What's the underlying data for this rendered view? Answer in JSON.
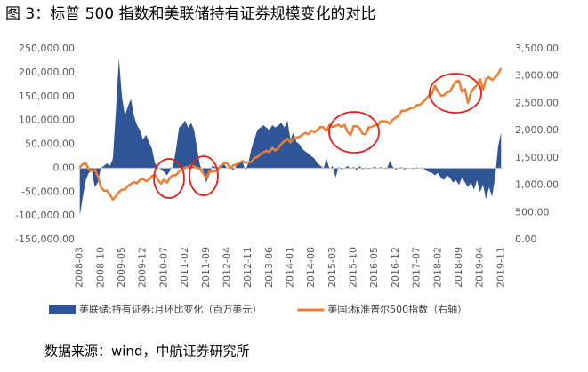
{
  "chart_data": {
    "type": "area-line",
    "title": "图 3：标普 500 指数和美联储持有证券规模变化的对比",
    "source": "数据来源：wind，中航证券研究所",
    "categories": [
      "2008-03",
      null,
      null,
      null,
      null,
      null,
      null,
      "2008-10",
      null,
      null,
      null,
      null,
      null,
      null,
      "2009-05",
      null,
      null,
      null,
      null,
      null,
      null,
      "2009-12",
      null,
      null,
      null,
      null,
      null,
      null,
      "2010-07",
      null,
      null,
      null,
      null,
      null,
      null,
      "2011-02",
      null,
      null,
      null,
      null,
      null,
      null,
      "2011-09",
      null,
      null,
      null,
      null,
      null,
      null,
      "2012-04",
      null,
      null,
      null,
      null,
      null,
      null,
      "2012-11",
      null,
      null,
      null,
      null,
      null,
      null,
      "2013-06",
      null,
      null,
      null,
      null,
      null,
      null,
      "2014-01",
      null,
      null,
      null,
      null,
      null,
      null,
      "2014-08",
      null,
      null,
      null,
      null,
      null,
      null,
      "2015-03",
      null,
      null,
      null,
      null,
      null,
      null,
      "2015-10",
      null,
      null,
      null,
      null,
      null,
      null,
      "2016-05",
      null,
      null,
      null,
      null,
      null,
      null,
      "2016-12",
      null,
      null,
      null,
      null,
      null,
      null,
      "2017-07",
      null,
      null,
      null,
      null,
      null,
      null,
      "2018-02",
      null,
      null,
      null,
      null,
      null,
      null,
      "2018-09",
      null,
      null,
      null,
      null,
      null,
      null,
      "2019-04",
      null,
      null,
      null,
      null,
      null,
      null,
      "2019-11"
    ],
    "series": [
      {
        "name": "美联储:持有证券:月环比变化（百万美元）",
        "color": "#2f5597",
        "kind": "area",
        "values": [
          -100000,
          -60000,
          -25000,
          -10000,
          -5000,
          -40000,
          -30000,
          0,
          5000,
          10000,
          5000,
          20000,
          120000,
          230000,
          150000,
          110000,
          130000,
          145000,
          110000,
          90000,
          80000,
          60000,
          70000,
          55000,
          40000,
          10000,
          2000,
          -3000,
          -8000,
          -15000,
          -5000,
          5000,
          40000,
          85000,
          90000,
          100000,
          85000,
          95000,
          80000,
          40000,
          5000,
          -5000,
          -30000,
          -15000,
          5000,
          3000,
          -5000,
          5000,
          8000,
          0,
          3000,
          -5000,
          5000,
          10000,
          15000,
          -5000,
          10000,
          40000,
          60000,
          80000,
          85000,
          90000,
          85000,
          80000,
          90000,
          85000,
          90000,
          95000,
          85000,
          100000,
          60000,
          75000,
          55000,
          50000,
          40000,
          35000,
          30000,
          25000,
          20000,
          10000,
          5000,
          0,
          20000,
          -2000,
          5000,
          -20000,
          3000,
          -3000,
          0,
          5000,
          -2000,
          3000,
          -5000,
          5000,
          -3000,
          2000,
          -2000,
          0,
          3000,
          -1000,
          2000,
          0,
          -2000,
          15000,
          3000,
          -3000,
          0,
          2000,
          -3000,
          1000,
          0,
          -2000,
          2000,
          -1000,
          0,
          -5000,
          -8000,
          -10000,
          -15000,
          -10000,
          -20000,
          -25000,
          -15000,
          -20000,
          -30000,
          -25000,
          -35000,
          -20000,
          -30000,
          -40000,
          -30000,
          -45000,
          -25000,
          -50000,
          -35000,
          -65000,
          -40000,
          -60000,
          -20000,
          45000,
          75000
        ]
      },
      {
        "name": "美国:标准普尔500指数（右轴）",
        "color": "#ed7d31",
        "kind": "line",
        "axis": "y2",
        "values": [
          1323,
          1386,
          1400,
          1280,
          1267,
          1283,
          1166,
          969,
          896,
          903,
          826,
          735,
          798,
          873,
          919,
          919,
          987,
          1021,
          1057,
          1036,
          1096,
          1115,
          1074,
          1104,
          1169,
          1187,
          1089,
          1031,
          1102,
          1049,
          1141,
          1183,
          1181,
          1258,
          1286,
          1327,
          1326,
          1364,
          1345,
          1321,
          1292,
          1219,
          1131,
          1253,
          1247,
          1258,
          1312,
          1366,
          1408,
          1398,
          1310,
          1362,
          1379,
          1407,
          1441,
          1412,
          1416,
          1426,
          1498,
          1515,
          1569,
          1598,
          1631,
          1606,
          1686,
          1633,
          1682,
          1757,
          1806,
          1848,
          1783,
          1859,
          1872,
          1884,
          1924,
          1960,
          1931,
          2003,
          1972,
          2018,
          2068,
          2059,
          1995,
          2105,
          2068,
          2086,
          2107,
          2063,
          2104,
          1972,
          1920,
          2079,
          2080,
          2044,
          1940,
          1932,
          2060,
          2065,
          2097,
          2099,
          2174,
          2171,
          2168,
          2126,
          2199,
          2239,
          2279,
          2364,
          2363,
          2384,
          2412,
          2423,
          2470,
          2472,
          2519,
          2575,
          2648,
          2674,
          2824,
          2714,
          2641,
          2648,
          2705,
          2718,
          2816,
          2901,
          2914,
          2712,
          2760,
          2507,
          2704,
          2784,
          2834,
          2946,
          2752,
          2942,
          2980,
          2926,
          2977,
          3038,
          3141
        ]
      }
    ],
    "ylim": [
      -150000,
      250000
    ],
    "yticks": [
      {
        "value": -150000,
        "label": "-150,000.00"
      },
      {
        "value": -100000,
        "label": "-100,000.00"
      },
      {
        "value": -50000,
        "label": "-50,000.00"
      },
      {
        "value": 0,
        "label": "0.00"
      },
      {
        "value": 50000,
        "label": "50,000.00"
      },
      {
        "value": 100000,
        "label": "100,000.00"
      },
      {
        "value": 150000,
        "label": "150,000.00"
      },
      {
        "value": 200000,
        "label": "200,000.00"
      },
      {
        "value": 250000,
        "label": "250,000.00"
      }
    ],
    "y2lim": [
      0,
      3500
    ],
    "y2ticks": [
      {
        "value": 0,
        "label": "0.00"
      },
      {
        "value": 500,
        "label": "500.00"
      },
      {
        "value": 1000,
        "label": "1,000.00"
      },
      {
        "value": 1500,
        "label": "1,500.00"
      },
      {
        "value": 2000,
        "label": "2,000.00"
      },
      {
        "value": 2500,
        "label": "2,500.00"
      },
      {
        "value": 3000,
        "label": "3,000.00"
      },
      {
        "value": 3500,
        "label": "3,500.00"
      }
    ],
    "grid": false,
    "legend": "bottom"
  }
}
